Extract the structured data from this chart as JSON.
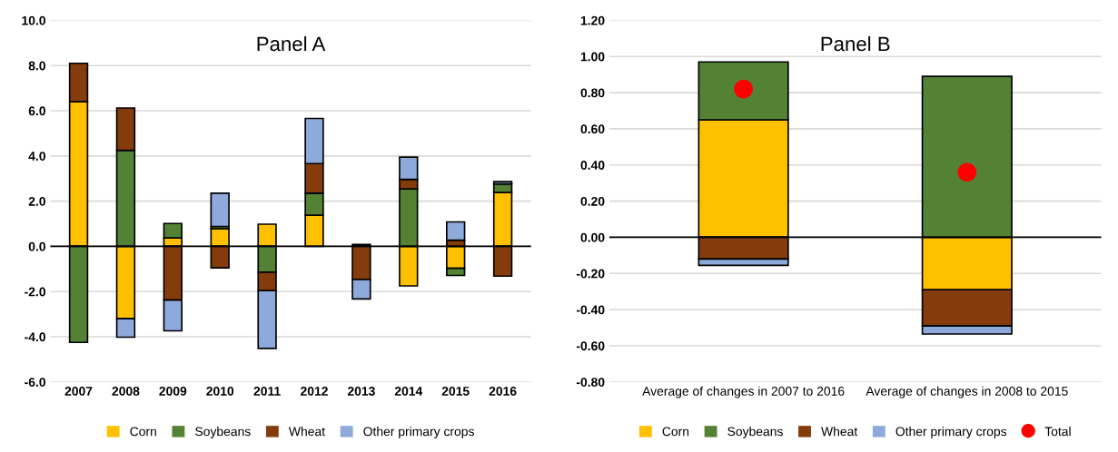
{
  "chart_data": [
    {
      "type": "bar",
      "title": "Panel A",
      "stacked": true,
      "grid": "y",
      "legend": "bottom",
      "categories": [
        "2007",
        "2008",
        "2009",
        "2010",
        "2011",
        "2012",
        "2013",
        "2014",
        "2015",
        "2016"
      ],
      "ylim": [
        -6,
        10
      ],
      "yticks": [
        {
          "value": -6,
          "label": "-6.0"
        },
        {
          "value": -4,
          "label": "-4.0"
        },
        {
          "value": -2,
          "label": "-2.0"
        },
        {
          "value": 0,
          "label": "0.0"
        },
        {
          "value": 2,
          "label": "2.0"
        },
        {
          "value": 4,
          "label": "4.0"
        },
        {
          "value": 6,
          "label": "6.0"
        },
        {
          "value": 8,
          "label": "8.0"
        },
        {
          "value": 10,
          "label": "10.0"
        }
      ],
      "series": [
        {
          "name": "Corn",
          "color": "#ffc000",
          "values": [
            6.4,
            -3.2,
            0.37,
            0.78,
            0.98,
            1.38,
            null,
            -1.75,
            -0.97,
            2.38
          ]
        },
        {
          "name": "Soybeans",
          "color": "#548235",
          "values": [
            -4.25,
            4.25,
            0.64,
            0.1,
            -1.14,
            0.97,
            0.08,
            2.54,
            -0.32,
            0.38
          ]
        },
        {
          "name": "Wheat",
          "color": "#843c0c",
          "values": [
            1.7,
            1.87,
            -2.38,
            -0.95,
            -0.82,
            1.31,
            -1.47,
            0.42,
            0.27,
            -1.32
          ]
        },
        {
          "name": "Other primary crops",
          "color": "#8eaadb",
          "values": [
            null,
            -0.82,
            -1.36,
            1.47,
            -2.56,
            2.0,
            -0.86,
            0.99,
            0.81,
            0.1
          ]
        }
      ]
    },
    {
      "type": "bar",
      "title": "Panel B",
      "stacked": true,
      "grid": "y",
      "legend": "bottom",
      "categories": [
        "Average of changes in 2007 to 2016",
        "Average of changes in 2008 to 2015"
      ],
      "ylim": [
        -0.8,
        1.2
      ],
      "yticks": [
        {
          "value": -0.8,
          "label": "-0.80"
        },
        {
          "value": -0.6,
          "label": "-0.60"
        },
        {
          "value": -0.4,
          "label": "-0.40"
        },
        {
          "value": -0.2,
          "label": "-0.20"
        },
        {
          "value": 0,
          "label": "0.00"
        },
        {
          "value": 0.2,
          "label": "0.20"
        },
        {
          "value": 0.4,
          "label": "0.40"
        },
        {
          "value": 0.6,
          "label": "0.60"
        },
        {
          "value": 0.8,
          "label": "0.80"
        },
        {
          "value": 1.0,
          "label": "1.00"
        },
        {
          "value": 1.2,
          "label": "1.20"
        }
      ],
      "series": [
        {
          "name": "Corn",
          "color": "#ffc000",
          "values": [
            0.65,
            -0.29
          ]
        },
        {
          "name": "Soybeans",
          "color": "#548235",
          "values": [
            0.32,
            0.89
          ]
        },
        {
          "name": "Wheat",
          "color": "#843c0c",
          "values": [
            -0.12,
            -0.2
          ]
        },
        {
          "name": "Other primary crops",
          "color": "#8eaadb",
          "values": [
            -0.035,
            -0.045
          ]
        },
        {
          "name": "Total",
          "type": "scatter",
          "marker": "circle",
          "color": "#ff0000",
          "x": [
            "Average of changes in 2007 to 2016",
            "Average of changes in 2008 to 2015"
          ],
          "values": [
            0.82,
            0.36
          ]
        }
      ]
    }
  ]
}
